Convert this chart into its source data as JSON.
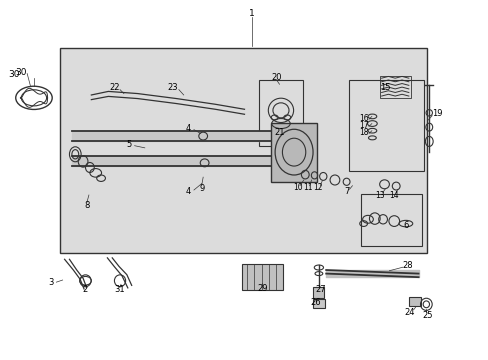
{
  "bg_color": "#ffffff",
  "diagram_bg": "#e0e0e0",
  "line_color": "#333333",
  "fig_width": 4.89,
  "fig_height": 3.6
}
